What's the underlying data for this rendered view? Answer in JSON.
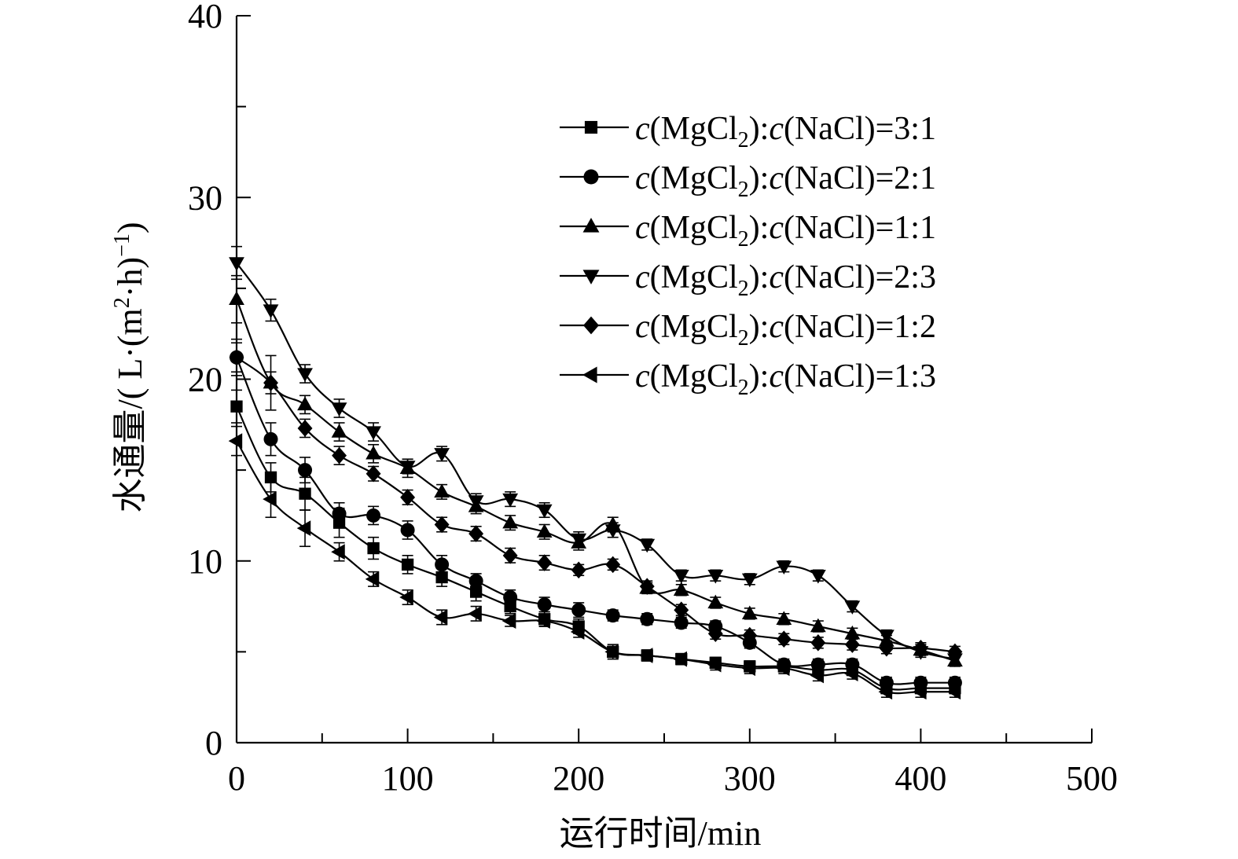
{
  "chart_data": {
    "type": "line",
    "title": "",
    "xlabel": "运行时间/min",
    "ylabel": "水通量/(L·(m²·h)⁻¹)",
    "ylabel_parts": {
      "main": "水通量/( L·(m",
      "sup1": "2",
      "mid": "·h)",
      "sup2": "−1",
      "end": ")"
    },
    "xlim": [
      0,
      500
    ],
    "ylim": [
      0,
      40
    ],
    "xticks": [
      0,
      100,
      200,
      300,
      400,
      500
    ],
    "yticks": [
      0,
      10,
      20,
      30,
      40
    ],
    "grid": false,
    "legend_position": "top-right",
    "x": [
      0,
      20,
      40,
      60,
      80,
      100,
      120,
      140,
      160,
      180,
      200,
      220,
      240,
      260,
      280,
      300,
      320,
      340,
      360,
      380,
      400,
      420
    ],
    "series": [
      {
        "name": "c(MgCl2):c(NaCl)=3:1",
        "legend_parts": {
          "c1": "c",
          "a": "(MgCl",
          "sub": "2",
          "b": "):",
          "c2": "c",
          "d": "(NaCl)=3:1"
        },
        "marker": "square",
        "values": [
          18.5,
          14.6,
          13.7,
          12.1,
          10.7,
          9.8,
          9.1,
          8.3,
          7.5,
          6.8,
          6.4,
          5.0,
          4.8,
          4.6,
          4.4,
          4.2,
          4.2,
          4.0,
          4.0,
          3.0,
          3.0,
          3.0
        ],
        "errors": [
          0.9,
          0.8,
          0.9,
          0.8,
          0.6,
          0.5,
          0.5,
          0.5,
          0.4,
          0.4,
          0.4,
          0.4,
          0.3,
          0.3,
          0.3,
          0.3,
          0.3,
          0.3,
          0.3,
          0.3,
          0.3,
          0.3
        ]
      },
      {
        "name": "c(MgCl2):c(NaCl)=2:1",
        "legend_parts": {
          "c1": "c",
          "a": "(MgCl",
          "sub": "2",
          "b": "):",
          "c2": "c",
          "d": "(NaCl)=2:1"
        },
        "marker": "circle",
        "values": [
          21.2,
          16.7,
          15.0,
          12.6,
          12.5,
          11.7,
          9.8,
          8.9,
          8.0,
          7.6,
          7.3,
          7.0,
          6.8,
          6.6,
          6.4,
          5.5,
          4.3,
          4.3,
          4.3,
          3.3,
          3.3,
          3.3
        ],
        "errors": [
          1.0,
          0.9,
          0.7,
          0.6,
          0.5,
          0.5,
          0.5,
          0.4,
          0.4,
          0.4,
          0.4,
          0.3,
          0.3,
          0.3,
          0.3,
          0.3,
          0.3,
          0.3,
          0.3,
          0.3,
          0.3,
          0.3
        ]
      },
      {
        "name": "c(MgCl2):c(NaCl)=1:1",
        "legend_parts": {
          "c1": "c",
          "a": "(MgCl",
          "sub": "2",
          "b": "):",
          "c2": "c",
          "d": "(NaCl)=1:1"
        },
        "marker": "triangle-up",
        "values": [
          24.4,
          19.8,
          18.6,
          17.1,
          15.9,
          15.1,
          13.8,
          13.0,
          12.1,
          11.6,
          11.0,
          12.0,
          8.5,
          8.4,
          7.7,
          7.1,
          6.8,
          6.4,
          6.0,
          5.6,
          5.1,
          4.5
        ],
        "errors": [
          1.3,
          1.5,
          0.5,
          0.5,
          0.5,
          0.5,
          0.4,
          0.4,
          0.4,
          0.4,
          0.4,
          0.4,
          0.3,
          0.3,
          0.3,
          0.3,
          0.3,
          0.3,
          0.3,
          0.3,
          0.3,
          0.3
        ]
      },
      {
        "name": "c(MgCl2):c(NaCl)=2:3",
        "legend_parts": {
          "c1": "c",
          "a": "(MgCl",
          "sub": "2",
          "b": "):",
          "c2": "c",
          "d": "(NaCl)=2:3"
        },
        "marker": "triangle-down",
        "values": [
          26.4,
          23.8,
          20.3,
          18.4,
          17.1,
          15.2,
          15.9,
          13.3,
          13.4,
          12.8,
          11.2,
          11.7,
          10.9,
          9.2,
          9.2,
          9.0,
          9.7,
          9.2,
          7.5,
          5.9,
          5.0,
          4.6
        ],
        "errors": [
          0.9,
          0.6,
          0.5,
          0.5,
          0.5,
          0.4,
          0.4,
          0.4,
          0.4,
          0.4,
          0.4,
          0.4,
          0.3,
          0.3,
          0.3,
          0.3,
          0.3,
          0.3,
          0.3,
          0.3,
          0.3,
          0.3
        ]
      },
      {
        "name": "c(MgCl2):c(NaCl)=1:2",
        "legend_parts": {
          "c1": "c",
          "a": "(MgCl",
          "sub": "2",
          "b": "):",
          "c2": "c",
          "d": "(NaCl)=1:2"
        },
        "marker": "diamond",
        "values": [
          21.2,
          19.8,
          17.3,
          15.8,
          14.8,
          13.5,
          12.0,
          11.5,
          10.3,
          9.9,
          9.5,
          9.8,
          8.6,
          7.3,
          6.0,
          5.9,
          5.7,
          5.5,
          5.4,
          5.2,
          5.2,
          5.0
        ],
        "errors": [
          0.8,
          0.6,
          0.5,
          0.5,
          0.4,
          0.4,
          0.4,
          0.4,
          0.4,
          0.4,
          0.3,
          0.3,
          0.3,
          0.3,
          0.3,
          0.3,
          0.3,
          0.3,
          0.3,
          0.3,
          0.3,
          0.3
        ]
      },
      {
        "name": "c(MgCl2):c(NaCl)=1:3",
        "legend_parts": {
          "c1": "c",
          "a": "(MgCl",
          "sub": "2",
          "b": "):",
          "c2": "c",
          "d": "(NaCl)=1:3"
        },
        "marker": "triangle-left",
        "values": [
          16.6,
          13.4,
          11.8,
          10.5,
          9.0,
          8.0,
          6.9,
          7.1,
          6.7,
          6.7,
          6.1,
          5.0,
          4.8,
          4.6,
          4.3,
          4.1,
          4.1,
          3.7,
          3.8,
          2.8,
          2.8,
          2.8
        ],
        "errors": [
          0.8,
          1.0,
          1.0,
          0.5,
          0.4,
          0.4,
          0.4,
          0.4,
          0.3,
          0.3,
          0.3,
          0.3,
          0.3,
          0.3,
          0.3,
          0.3,
          0.3,
          0.3,
          0.3,
          0.3,
          0.3,
          0.3
        ]
      }
    ]
  }
}
